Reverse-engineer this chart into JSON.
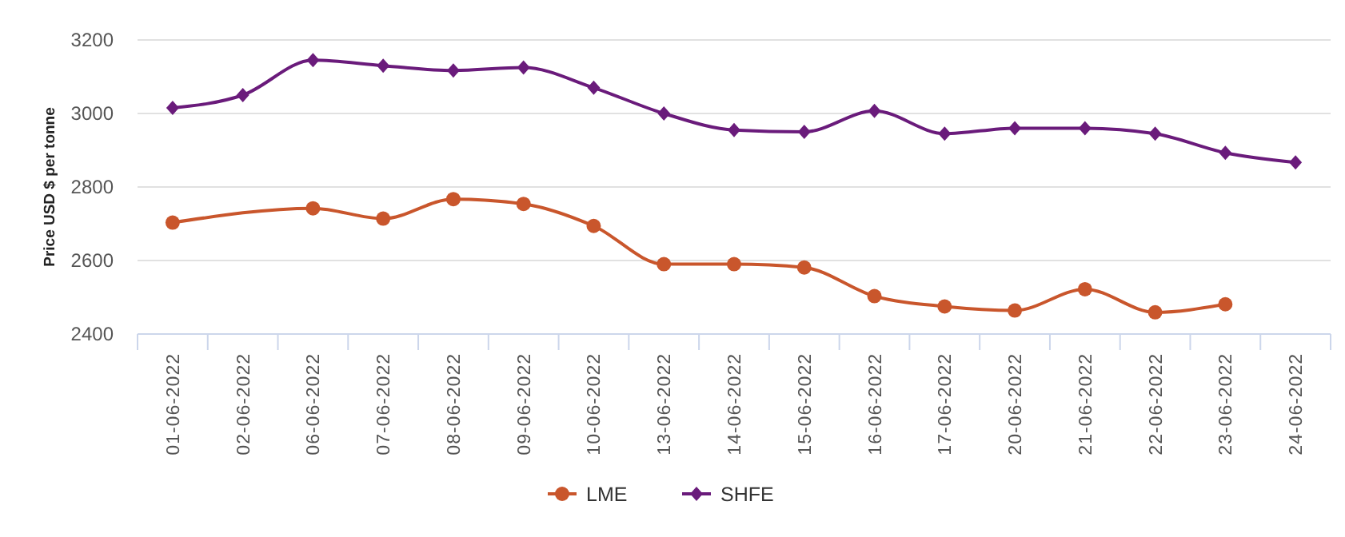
{
  "chart_data": {
    "type": "line",
    "ylabel": "Price USD $ per tonne",
    "categories": [
      "01-06-2022",
      "02-06-2022",
      "06-06-2022",
      "07-06-2022",
      "08-06-2022",
      "09-06-2022",
      "10-06-2022",
      "13-06-2022",
      "14-06-2022",
      "15-06-2022",
      "16-06-2022",
      "17-06-2022",
      "20-06-2022",
      "21-06-2022",
      "22-06-2022",
      "23-06-2022",
      "24-06-2022"
    ],
    "series": [
      {
        "name": "LME",
        "color": "#c9562c",
        "marker": "circle",
        "values": [
          2703,
          null,
          2742,
          2714,
          2767,
          2754,
          2694,
          2590,
          2590,
          2581,
          2503,
          2475,
          2464,
          2522,
          2459,
          2481,
          null
        ]
      },
      {
        "name": "SHFE",
        "color": "#6a1b7b",
        "marker": "diamond",
        "values": [
          3015,
          3050,
          3145,
          3130,
          3117,
          3125,
          3070,
          3000,
          2955,
          2950,
          3007,
          2945,
          2960,
          2960,
          2945,
          2893,
          2867
        ]
      }
    ],
    "ylim": [
      2400,
      3200
    ],
    "yticks": [
      2400,
      2600,
      2800,
      3000,
      3200
    ],
    "grid": "y",
    "legend": "bottom"
  }
}
